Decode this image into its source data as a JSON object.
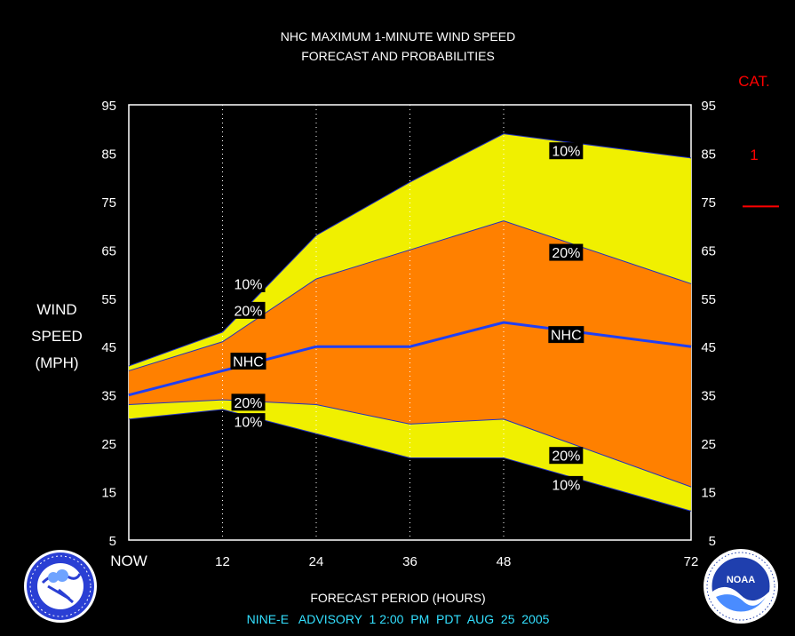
{
  "title": {
    "line1": "NHC MAXIMUM 1-MINUTE WIND SPEED",
    "line2": "FORECAST AND PROBABILITIES"
  },
  "footer": {
    "advisory": "NINE-E   ADVISORY  1 2:00  PM  PDT  AUG  25  2005"
  },
  "logos": {
    "left_icon": "nws-logo-icon",
    "right_icon": "noaa-logo-icon"
  },
  "colors": {
    "band_10": "#f0f000",
    "band_20": "#ff8000",
    "nhc_line": "#1f3ff5",
    "cat_label": "#ff0000",
    "advisory_text": "#33e0ff"
  },
  "chart_data": {
    "type": "area",
    "xlabel": "FORECAST PERIOD (HOURS)",
    "ylabel": [
      "WIND",
      "SPEED",
      "(MPH)"
    ],
    "xlim": [
      0,
      72
    ],
    "ylim": [
      5,
      95
    ],
    "x_ticks": [
      {
        "value": 0,
        "label": "NOW"
      },
      {
        "value": 12,
        "label": "12"
      },
      {
        "value": 24,
        "label": "24"
      },
      {
        "value": 36,
        "label": "36"
      },
      {
        "value": 48,
        "label": "48"
      },
      {
        "value": 72,
        "label": "72"
      }
    ],
    "y_ticks": [
      5,
      15,
      25,
      35,
      45,
      55,
      65,
      75,
      85,
      95
    ],
    "x": [
      0,
      12,
      24,
      36,
      48,
      72
    ],
    "series": [
      {
        "name": "10%",
        "values": [
          41,
          48,
          68,
          79,
          89,
          84
        ]
      },
      {
        "name": "20%",
        "values": [
          40,
          46,
          59,
          65,
          71,
          58
        ]
      },
      {
        "name": "NHC",
        "values": [
          35,
          40,
          45,
          45,
          50,
          45
        ]
      },
      {
        "name": "20%",
        "values": [
          33,
          34,
          33,
          29,
          30,
          16
        ]
      },
      {
        "name": "10%",
        "values": [
          30,
          32,
          27,
          22,
          22,
          11
        ]
      }
    ],
    "series_labels": [
      {
        "text": "10%",
        "x": 56,
        "y": 85.5
      },
      {
        "text": "20%",
        "x": 56,
        "y": 64.5
      },
      {
        "text": "NHC",
        "x": 56,
        "y": 47.5
      },
      {
        "text": "20%",
        "x": 56,
        "y": 22.5
      },
      {
        "text": "10%",
        "x": 56,
        "y": 16.5
      },
      {
        "text": "10%",
        "x": 15.3,
        "y": 58
      },
      {
        "text": "20%",
        "x": 15.3,
        "y": 52.5
      },
      {
        "text": "NHC",
        "x": 15.3,
        "y": 42
      },
      {
        "text": "20%",
        "x": 15.3,
        "y": 33.5
      },
      {
        "text": "10%",
        "x": 15.3,
        "y": 29.5
      }
    ],
    "category": {
      "title": "CAT.",
      "levels": [
        {
          "label": "1",
          "threshold": 74
        }
      ]
    },
    "grid": "vertical dotted at 12, 24, 36, 48"
  }
}
